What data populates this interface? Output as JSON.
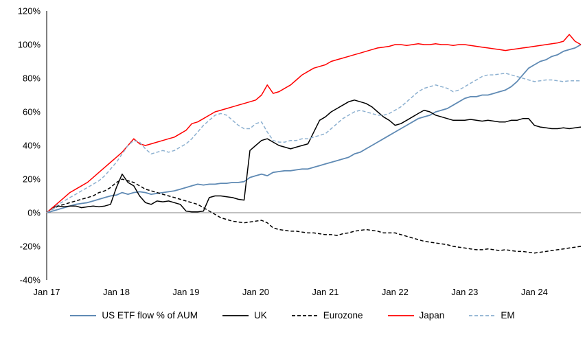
{
  "chart_data": {
    "type": "line",
    "title": "",
    "xlabel": "",
    "ylabel": "",
    "y_tick_suffix": "%",
    "ylim": [
      -40,
      120
    ],
    "y_ticks": [
      120,
      100,
      80,
      60,
      40,
      20,
      0,
      -20,
      -40
    ],
    "x_tick_labels": [
      "Jan 17",
      "Jan 18",
      "Jan 19",
      "Jan 20",
      "Jan 21",
      "Jan 22",
      "Jan 23",
      "Jan 24"
    ],
    "x_tick_indices": [
      0,
      12,
      24,
      36,
      48,
      60,
      72,
      84
    ],
    "n_points": 93,
    "grid": false,
    "legend_position": "bottom",
    "axis_color": "#000000",
    "zero_line_color": "#808080",
    "series": [
      {
        "name": "US ETF flow % of AUM",
        "color": "#5f8ab4",
        "dash": "solid",
        "width": 1.8,
        "values": [
          0,
          1,
          2,
          3,
          4,
          5,
          5.5,
          6,
          7,
          8,
          9,
          10,
          10.5,
          12,
          11,
          12,
          12.5,
          12,
          11,
          11.5,
          12,
          12.5,
          13,
          14,
          15,
          16,
          17,
          16.5,
          17,
          17,
          17.5,
          17.5,
          18,
          18,
          18.5,
          21,
          22,
          23,
          22,
          24,
          24.5,
          25,
          25,
          25.5,
          26,
          26,
          27,
          28,
          29,
          30,
          31,
          32,
          33,
          35,
          36,
          38,
          40,
          42,
          44,
          46,
          48,
          50,
          52,
          54,
          56,
          57,
          58,
          60,
          61,
          62,
          64,
          66,
          68,
          69,
          69,
          70,
          70,
          71,
          72,
          73,
          75,
          78,
          82,
          86,
          88,
          90,
          91,
          93,
          94,
          96,
          97,
          98,
          100
        ]
      },
      {
        "name": "UK",
        "color": "#000000",
        "dash": "solid",
        "width": 1.5,
        "values": [
          0,
          3,
          4,
          3.5,
          4,
          4,
          3,
          3.5,
          4,
          3.5,
          4,
          5,
          15,
          23,
          18,
          16,
          10,
          6,
          5,
          7,
          6.5,
          7,
          6,
          5,
          1,
          0.5,
          0.5,
          1,
          9,
          10,
          10,
          9.5,
          9,
          8,
          7.5,
          37,
          40,
          43,
          44,
          42,
          40,
          39,
          38,
          39,
          40,
          41,
          48,
          55,
          57,
          60,
          62,
          64,
          66,
          67,
          66,
          65,
          63,
          60,
          57,
          55,
          52,
          53,
          55,
          57,
          59,
          61,
          60,
          58,
          57,
          56,
          55,
          55,
          55,
          55.5,
          55,
          54.5,
          55,
          54.5,
          54,
          54,
          55,
          55,
          56,
          56,
          52,
          51,
          50.5,
          50,
          50,
          50.5,
          50,
          50.5,
          51
        ]
      },
      {
        "name": "Eurozone",
        "color": "#000000",
        "dash": "dashed",
        "width": 1.5,
        "values": [
          0,
          2,
          4,
          5,
          6,
          7,
          8,
          9,
          10,
          12,
          13,
          15,
          18,
          20,
          19,
          18,
          16,
          14,
          13,
          12,
          11,
          10,
          9,
          8,
          7,
          6,
          5,
          3,
          1,
          -1,
          -3,
          -4,
          -5,
          -5.5,
          -6,
          -5.5,
          -5,
          -4.5,
          -6,
          -9,
          -10,
          -10.5,
          -11,
          -11,
          -11.5,
          -12,
          -12,
          -12.5,
          -13,
          -13,
          -13.5,
          -12.5,
          -12,
          -11,
          -10.5,
          -10,
          -10.5,
          -11,
          -12,
          -12,
          -12,
          -13,
          -14,
          -15,
          -16,
          -17,
          -17.5,
          -18,
          -18.5,
          -19,
          -20,
          -20.5,
          -21,
          -21.5,
          -22,
          -22,
          -21.5,
          -22,
          -22.5,
          -22,
          -22.5,
          -23,
          -23,
          -23.5,
          -24,
          -23.5,
          -23,
          -22.5,
          -22,
          -21.5,
          -21,
          -20.5,
          -20
        ]
      },
      {
        "name": "Japan",
        "color": "#ff0000",
        "dash": "solid",
        "width": 1.5,
        "values": [
          0,
          3,
          6,
          9,
          12,
          14,
          16,
          18,
          21,
          24,
          27,
          30,
          33,
          36,
          40,
          44,
          41,
          40,
          41,
          42,
          43,
          44,
          45,
          47,
          49,
          53,
          54,
          56,
          58,
          60,
          61,
          62,
          63,
          64,
          65,
          66,
          67,
          70,
          76,
          71,
          72,
          74,
          76,
          79,
          82,
          84,
          86,
          87,
          88,
          90,
          91,
          92,
          93,
          94,
          95,
          96,
          97,
          98,
          98.5,
          99,
          100,
          100,
          99.5,
          100,
          100.5,
          100,
          100,
          100.5,
          100,
          100,
          99.5,
          100,
          100,
          99.5,
          99,
          98.5,
          98,
          97.5,
          97,
          96.5,
          97,
          97.5,
          98,
          98.5,
          99,
          99.5,
          100,
          100.5,
          101,
          102,
          106,
          102,
          100
        ]
      },
      {
        "name": "EM",
        "color": "#8cb0d0",
        "dash": "dashed",
        "width": 1.5,
        "values": [
          0,
          2,
          5,
          7,
          9,
          11,
          13,
          15,
          17,
          19,
          22,
          26,
          30,
          35,
          40,
          43,
          42,
          38,
          35,
          36,
          37,
          36,
          37,
          39,
          41,
          44,
          48,
          52,
          55,
          58,
          59,
          58,
          55,
          52,
          50,
          50,
          53,
          54,
          48,
          43,
          42,
          42,
          43,
          43,
          44,
          44,
          45,
          46,
          47,
          50,
          53,
          56,
          58,
          60,
          61,
          60,
          59,
          58,
          58,
          59,
          61,
          63,
          66,
          69,
          72,
          74,
          75,
          76,
          75,
          74,
          72,
          73,
          75,
          77,
          79,
          81,
          82,
          82,
          82.5,
          83,
          82,
          81,
          80,
          79,
          78,
          78.5,
          79,
          79,
          78.5,
          78,
          78.5,
          78.5,
          78.5
        ]
      }
    ]
  }
}
